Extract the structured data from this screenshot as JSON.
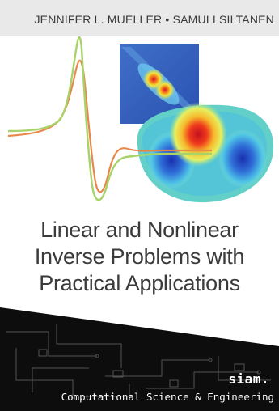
{
  "cover": {
    "authors": "JENNIFER L. MUELLER • SAMULI SILTANEN",
    "title_lines": [
      "Linear and Nonlinear",
      "Inverse Problems with",
      "Practical Applications"
    ],
    "publisher": "siam.",
    "series": "Computational Science & Engineering"
  },
  "colors": {
    "author_bar": "#e9e9e9",
    "title_text": "#3b3b3b",
    "wave_orange": "#e8874a",
    "wave_green": "#a8d36a",
    "footer_dark": "#0d0d0d"
  }
}
